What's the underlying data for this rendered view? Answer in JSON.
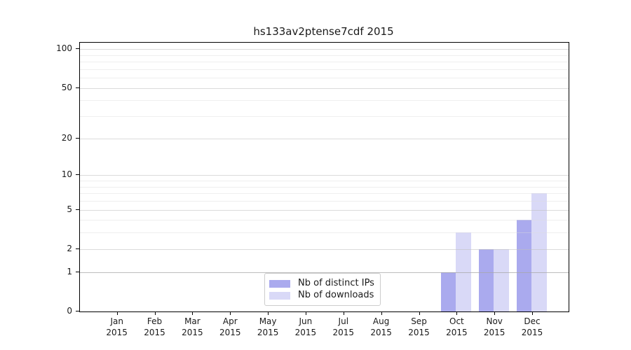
{
  "title": "hs133av2ptense7cdf 2015",
  "chart_data": {
    "type": "bar",
    "title": "hs133av2ptense7cdf 2015",
    "categories": [
      "Jan",
      "Feb",
      "Mar",
      "Apr",
      "May",
      "Jun",
      "Jul",
      "Aug",
      "Sep",
      "Oct",
      "Nov",
      "Dec"
    ],
    "x_tick_year": "2015",
    "series": [
      {
        "name": "Nb of distinct IPs",
        "color": "#aaaaee",
        "values": [
          0,
          0,
          0,
          0,
          0,
          0,
          0,
          0,
          0,
          1,
          2,
          4
        ]
      },
      {
        "name": "Nb of downloads",
        "color": "#d9d9f7",
        "values": [
          0,
          0,
          0,
          0,
          0,
          0,
          0,
          0,
          0,
          3,
          2,
          7
        ]
      }
    ],
    "y_scale": "log10(1+v)",
    "y_tick_labels": [
      "100",
      "50",
      "20",
      "10",
      "5",
      "2",
      "1",
      "0"
    ],
    "y_ticks": [
      100,
      50,
      20,
      10,
      5,
      2,
      1,
      0
    ],
    "y_minor_ticks": [
      3,
      4,
      6,
      7,
      8,
      9,
      30,
      40,
      60,
      70,
      80,
      90
    ],
    "ylim": [
      0,
      112
    ],
    "xlabel": "",
    "ylabel": "",
    "grid": "horizontal",
    "legend_position": "inside-bottom-center"
  },
  "colors": {
    "bar_distinct_ips": "#aaaaee",
    "bar_downloads": "#d9d9f7",
    "axis": "#000000",
    "grid_major": "#cfcfcf",
    "grid_minor": "#ededed",
    "background": "#ffffff",
    "legend_border": "#cccccc"
  }
}
